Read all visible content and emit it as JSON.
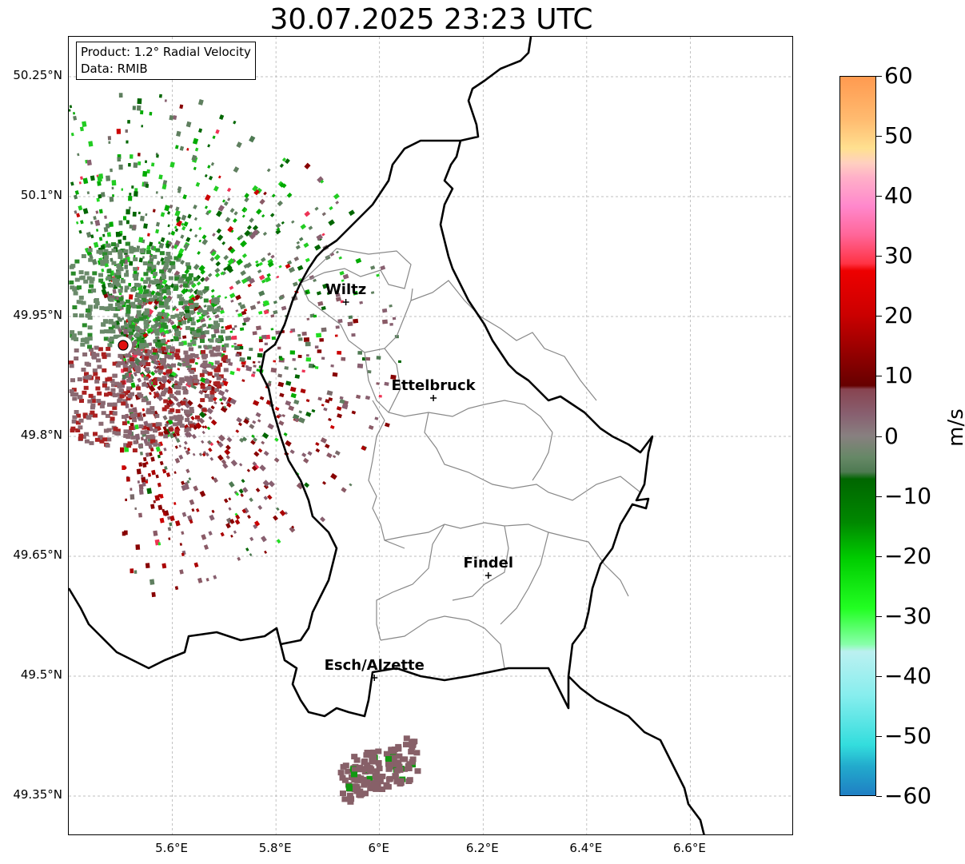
{
  "title": "30.07.2025 23:23 UTC",
  "info": {
    "product": "Product: 1.2° Radial Velocity",
    "data_source": "Data: RMIB"
  },
  "axes": {
    "lon_ticks": [
      "5.6°E",
      "5.8°E",
      "6°E",
      "6.2°E",
      "6.4°E",
      "6.6°E"
    ],
    "lat_ticks": [
      "50.25°N",
      "50.1°N",
      "49.95°N",
      "49.8°N",
      "49.65°N",
      "49.5°N",
      "49.35°N"
    ],
    "lon_range": [
      5.4,
      6.8
    ],
    "lat_range": [
      49.3,
      50.3
    ],
    "grid": true
  },
  "cities": [
    {
      "name": "Wiltz",
      "lon": 5.935,
      "lat": 49.968
    },
    {
      "name": "Ettelbruck",
      "lon": 6.104,
      "lat": 49.848
    },
    {
      "name": "Findel",
      "lon": 6.21,
      "lat": 49.626
    },
    {
      "name": "Esch/Alzette",
      "lon": 5.99,
      "lat": 49.498
    }
  ],
  "radar_site": {
    "lon": 5.505,
    "lat": 49.914
  },
  "colorbar": {
    "unit": "m/s",
    "ticks": [
      "60",
      "50",
      "40",
      "30",
      "20",
      "10",
      "0",
      "−10",
      "−20",
      "−30",
      "−40",
      "−50",
      "−60"
    ],
    "range": [
      -60,
      60
    ],
    "colors": {
      "high": "#ff9a50",
      "mid_red": "#ee0000",
      "zero": "#887777",
      "green": "#00aa00",
      "low": "#1f7fc4"
    }
  }
}
